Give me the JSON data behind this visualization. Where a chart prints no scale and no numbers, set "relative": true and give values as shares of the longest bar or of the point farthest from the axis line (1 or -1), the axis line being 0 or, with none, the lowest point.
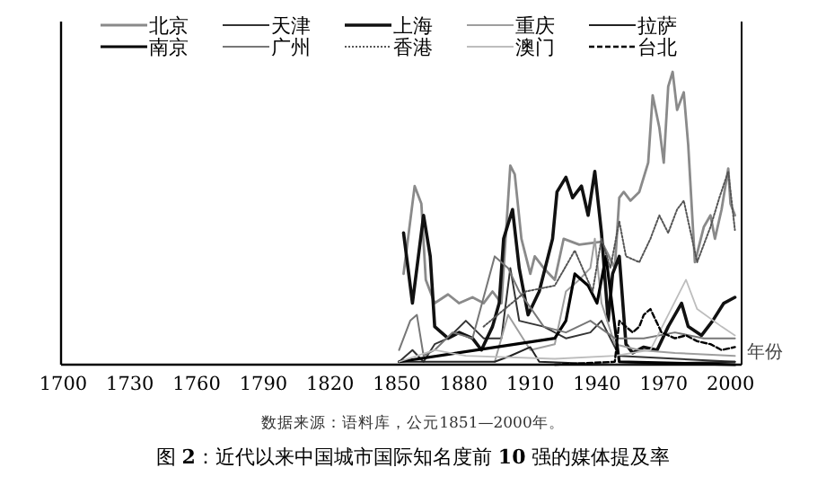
{
  "chart_data": {
    "type": "line",
    "relative": true,
    "title": "图 **2**：近代以来中国城市国际知名度前 **10** 强的媒体提及率",
    "xlabel": "年份",
    "annotations": [
      "数据来源：语料库，公元1851—2000年。"
    ],
    "xlim": [
      1699,
      2005
    ],
    "xticks": [
      1700,
      1730,
      1760,
      1790,
      1820,
      1850,
      1880,
      1910,
      1940,
      1970,
      2000
    ],
    "legend": "top",
    "grid": false,
    "series": [
      {
        "name": "北京",
        "color": "#8a8a8a",
        "line_style": "solid",
        "x": [
          1853,
          1858,
          1861,
          1863,
          1867,
          1873,
          1878,
          1884,
          1889,
          1893,
          1897,
          1901,
          1903,
          1906,
          1910,
          1912,
          1916,
          1921,
          1925,
          1932,
          1942,
          1948,
          1950,
          1952,
          1955,
          1959,
          1963,
          1965,
          1968,
          1970,
          1972,
          1974,
          1976,
          1979,
          1981,
          1984,
          1988,
          1991,
          1993,
          1996,
          1999,
          2000,
          2002
        ],
        "values": [
          0.31,
          0.61,
          0.55,
          0.29,
          0.21,
          0.24,
          0.21,
          0.23,
          0.21,
          0.25,
          0.21,
          0.68,
          0.65,
          0.43,
          0.31,
          0.37,
          0.33,
          0.29,
          0.43,
          0.41,
          0.42,
          0.33,
          0.57,
          0.59,
          0.56,
          0.59,
          0.69,
          0.92,
          0.81,
          0.69,
          0.95,
          1,
          0.87,
          0.93,
          0.75,
          0.35,
          0.47,
          0.51,
          0.43,
          0.53,
          0.67,
          0.55,
          0.51
        ]
      },
      {
        "name": "天津",
        "color": "#333333",
        "line_style": "solid",
        "x": [
          1851,
          1857,
          1862,
          1867,
          1873,
          1881,
          1889,
          1897,
          1901,
          1905,
          1916,
          1926,
          1937,
          1942,
          1950,
          2002
        ],
        "values": [
          0.01,
          0.05,
          0.01,
          0.07,
          0.09,
          0.15,
          0.09,
          0.09,
          0.33,
          0.15,
          0.13,
          0.09,
          0.11,
          0.15,
          0.03,
          0.01
        ]
      },
      {
        "name": "上海",
        "color": "#111111",
        "line_style": "solid",
        "x": [
          1853,
          1857,
          1860,
          1862,
          1865,
          1867,
          1873,
          1878,
          1884,
          1888,
          1893,
          1896,
          1898,
          1902,
          1905,
          1909,
          1914,
          1920,
          1922,
          1926,
          1929,
          1933,
          1936,
          1939,
          1942,
          1945,
          1947,
          1950,
          1953,
          1956,
          1961,
          1967,
          1972,
          1978,
          1981,
          1987,
          1992,
          1997,
          2002
        ],
        "values": [
          0.45,
          0.21,
          0.39,
          0.51,
          0.37,
          0.13,
          0.09,
          0.11,
          0.09,
          0.05,
          0.13,
          0.21,
          0.43,
          0.53,
          0.33,
          0.17,
          0.25,
          0.43,
          0.59,
          0.64,
          0.57,
          0.61,
          0.51,
          0.66,
          0.45,
          0.15,
          0.31,
          0.37,
          0.07,
          0.04,
          0.06,
          0.05,
          0.13,
          0.21,
          0.13,
          0.1,
          0.15,
          0.21,
          0.23
        ]
      },
      {
        "name": "重庆",
        "color": "#9e9e9e",
        "line_style": "solid",
        "x": [
          1894,
          1900,
          1910,
          1921,
          1926,
          1932,
          1937,
          1939,
          1942,
          1948,
          1959,
          1975,
          2002
        ],
        "values": [
          0.01,
          0.17,
          0.05,
          0.07,
          0.25,
          0.29,
          0.33,
          0.43,
          0.21,
          0.07,
          0.05,
          0.04,
          0.03
        ]
      },
      {
        "name": "拉萨",
        "color": "#222222",
        "line_style": "solid",
        "x": [
          1851,
          1894,
          1901,
          1910,
          1914,
          1948,
          2002
        ],
        "values": [
          0.01,
          0.01,
          0.03,
          0.06,
          0.01,
          0,
          0.01
        ]
      },
      {
        "name": "南京",
        "color": "#000000",
        "line_style": "solid",
        "x": [
          1851,
          1921,
          1926,
          1930,
          1936,
          1940,
          1944,
          1947,
          1950,
          2002
        ],
        "values": [
          0.01,
          0.09,
          0.15,
          0.31,
          0.27,
          0.21,
          0.37,
          0.19,
          0.01,
          0
        ]
      },
      {
        "name": "广州",
        "color": "#777777",
        "line_style": "solid",
        "x": [
          1851,
          1856,
          1859,
          1862,
          1867,
          1875,
          1884,
          1894,
          1900,
          1905,
          1916,
          1926,
          1937,
          1948,
          1961,
          1975,
          1988,
          2002
        ],
        "values": [
          0.05,
          0.15,
          0.17,
          0.03,
          0.05,
          0.11,
          0.09,
          0.37,
          0.33,
          0.25,
          0.13,
          0.11,
          0.15,
          0.09,
          0.09,
          0.11,
          0.09,
          0.09
        ]
      },
      {
        "name": "香港",
        "color": "#555555",
        "line_style": "dotted",
        "x": [
          1889,
          1908,
          1921,
          1930,
          1938,
          1942,
          1946,
          1950,
          1953,
          1959,
          1964,
          1968,
          1972,
          1976,
          1979,
          1981,
          1985,
          1991,
          1995,
          1999,
          2002
        ],
        "values": [
          0.13,
          0.25,
          0.27,
          0.39,
          0.25,
          0.43,
          0.33,
          0.49,
          0.37,
          0.35,
          0.43,
          0.51,
          0.45,
          0.53,
          0.56,
          0.49,
          0.35,
          0.47,
          0.57,
          0.66,
          0.46
        ]
      },
      {
        "name": "澳门",
        "color": "#bdbdbd",
        "line_style": "solid",
        "x": [
          1851,
          1867,
          1881,
          1921,
          1948,
          1964,
          1980,
          1985,
          1996,
          2002
        ],
        "values": [
          0.01,
          0.05,
          0.03,
          0.02,
          0.03,
          0.05,
          0.29,
          0.19,
          0.13,
          0.1
        ]
      },
      {
        "name": "台北",
        "color": "#000000",
        "line_style": "dashed",
        "x": [
          1921,
          1948,
          1950,
          1956,
          1959,
          1961,
          1964,
          1969,
          1975,
          1980,
          1985,
          1991,
          1996,
          2002
        ],
        "values": [
          0,
          0.01,
          0.15,
          0.11,
          0.13,
          0.17,
          0.19,
          0.11,
          0.09,
          0.1,
          0.08,
          0.07,
          0.05,
          0.06
        ]
      }
    ]
  }
}
